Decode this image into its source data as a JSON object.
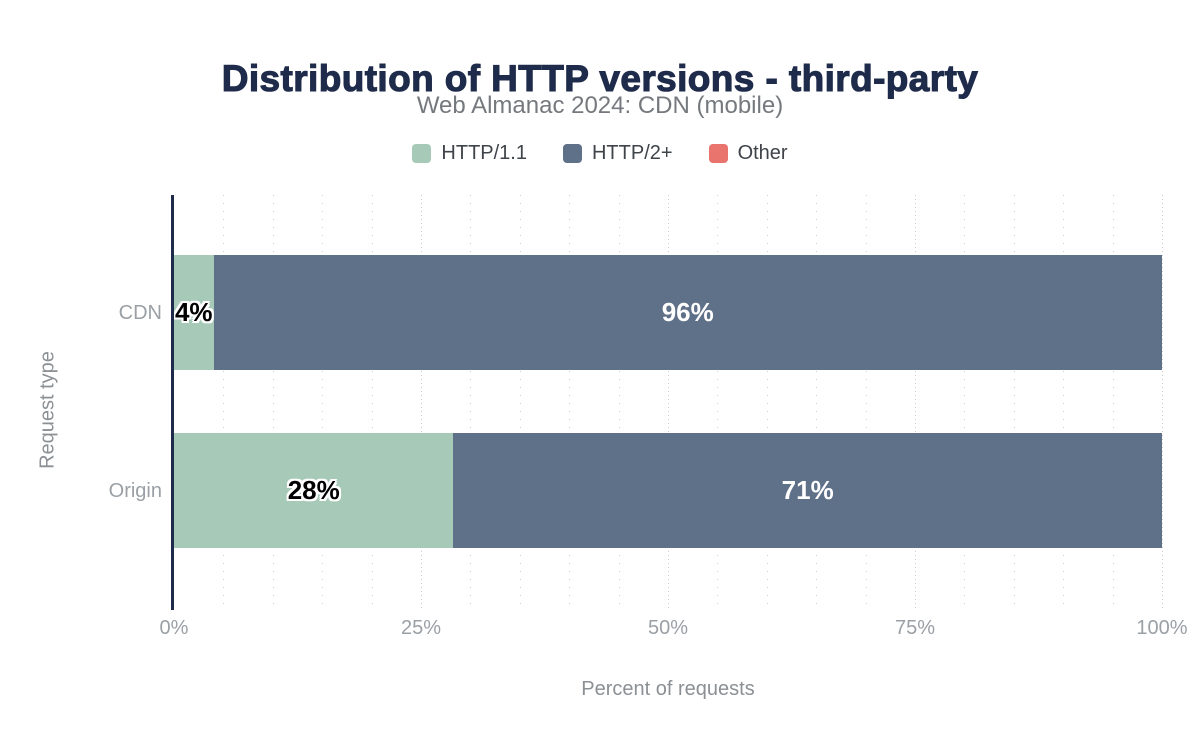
{
  "chart_data": {
    "type": "bar",
    "orientation": "horizontal",
    "stacked": true,
    "title": "Distribution of HTTP versions - third-party",
    "subtitle": "Web Almanac 2024: CDN (mobile)",
    "xlabel": "Percent of requests",
    "ylabel": "Request type",
    "categories": [
      "CDN",
      "Origin"
    ],
    "series": [
      {
        "name": "HTTP/1.1",
        "color": "#a7cab8",
        "label_color": "#000000",
        "values": [
          4,
          28
        ],
        "data_labels": [
          "4%",
          "28%"
        ]
      },
      {
        "name": "HTTP/2+",
        "color": "#5f7089",
        "label_color": "#ffffff",
        "values": [
          96,
          71
        ],
        "data_labels": [
          "96%",
          "71%"
        ]
      },
      {
        "name": "Other",
        "color": "#e9746d",
        "label_color": "#000000",
        "values": [
          0,
          0
        ],
        "data_labels": [
          "",
          ""
        ]
      }
    ],
    "x_ticks": [
      "0%",
      "25%",
      "50%",
      "75%",
      "100%"
    ],
    "xlim": [
      0,
      100
    ],
    "grid": {
      "minor_step_pct": 5,
      "major_step_pct": 25,
      "style": "dotted"
    },
    "legend_position": "top",
    "palette": {
      "title_text": "#1e2b4a",
      "axis_line": "#1e2b4a",
      "tick_text": "#9aa0a5",
      "axis_title_text": "#8b9095",
      "legend_text": "#3f444a",
      "background": "#ffffff"
    }
  }
}
